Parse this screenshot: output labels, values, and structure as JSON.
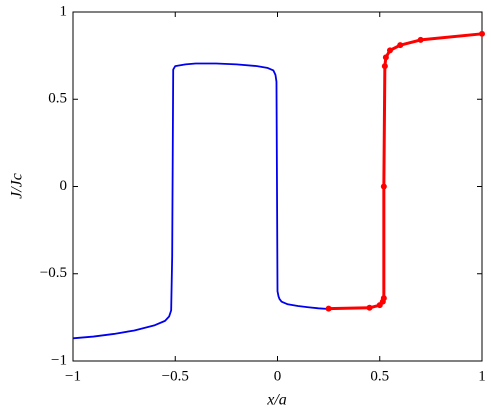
{
  "chart_data": {
    "type": "line",
    "x_label": "x/a",
    "y_label": "J/Jc",
    "xlim": [
      -1,
      1
    ],
    "ylim": [
      -1,
      1
    ],
    "xticks": [
      {
        "value": -1,
        "label": "−1"
      },
      {
        "value": -0.5,
        "label": "−0.5"
      },
      0,
      0.5,
      1
    ],
    "yticks": [
      {
        "value": -1,
        "label": "−1"
      },
      {
        "value": -0.5,
        "label": "−0.5"
      },
      0,
      0.5,
      1
    ],
    "series": [
      {
        "color": "#0000ee",
        "marker": false,
        "x": [
          -1,
          -0.9,
          -0.8,
          -0.7,
          -0.6,
          -0.55,
          -0.53,
          -0.52,
          -0.515,
          -0.51,
          -0.5,
          -0.45,
          -0.4,
          -0.3,
          -0.2,
          -0.1,
          -0.05,
          -0.02,
          -0.01,
          -0.005,
          0,
          0.005,
          0.01,
          0.02,
          0.05,
          0.1,
          0.15,
          0.2,
          0.25
        ],
        "values": [
          -0.87,
          -0.86,
          -0.845,
          -0.825,
          -0.795,
          -0.77,
          -0.745,
          -0.71,
          -0.4,
          0.67,
          0.69,
          0.7,
          0.705,
          0.705,
          0.7,
          0.69,
          0.68,
          0.665,
          0.64,
          0.6,
          -0.6,
          -0.63,
          -0.645,
          -0.66,
          -0.675,
          -0.685,
          -0.692,
          -0.698,
          -0.702
        ]
      },
      {
        "color": "#ff0000",
        "marker": true,
        "x": [
          0.25,
          0.45,
          0.5,
          0.515,
          0.52,
          0.52,
          0.525,
          0.53,
          0.55,
          0.6,
          0.7,
          1
        ],
        "values": [
          -0.7,
          -0.695,
          -0.68,
          -0.66,
          -0.64,
          0,
          0.69,
          0.74,
          0.78,
          0.81,
          0.84,
          0.875
        ]
      }
    ]
  }
}
